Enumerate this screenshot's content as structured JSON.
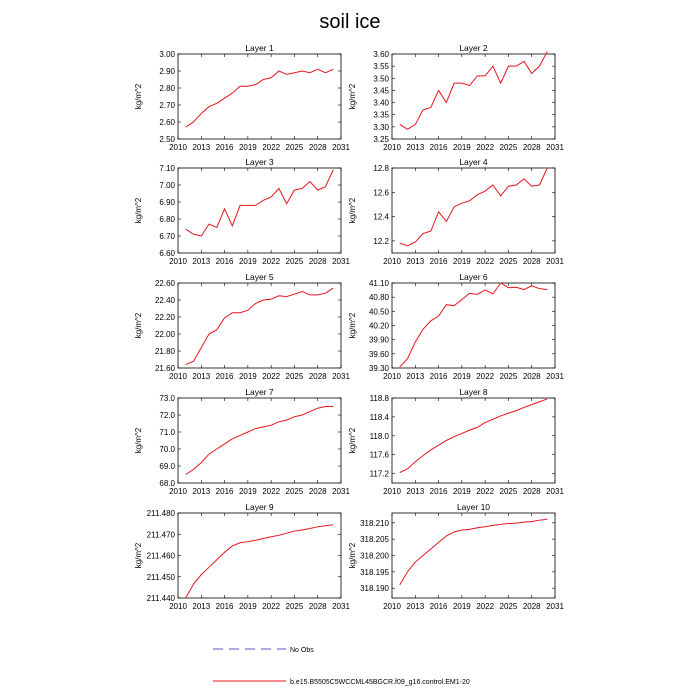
{
  "title": "soil ice",
  "legend": {
    "obs_label": "No Obs",
    "obs_color": "#5555cc",
    "model_label": "b.e15.B5505C5WCCML45BGCR.f09_g16.control.EM1-20",
    "model_color": "#e8141e"
  },
  "chart_data": [
    {
      "type": "line",
      "title": "Layer 1",
      "ylabel": "kg/m^2",
      "xlim": [
        2010,
        2031
      ],
      "xticks": [
        "2010",
        "2013",
        "2016",
        "2019",
        "2022",
        "2025",
        "2028",
        "2031"
      ],
      "ylim": [
        2.5,
        3.0
      ],
      "yticks": [
        "2.50",
        "2.60",
        "2.70",
        "2.80",
        "2.90",
        "3.00"
      ],
      "x": [
        2011,
        2012,
        2013,
        2014,
        2015,
        2016,
        2017,
        2018,
        2019,
        2020,
        2021,
        2022,
        2023,
        2024,
        2025,
        2026,
        2027,
        2028,
        2029,
        2030
      ],
      "series": [
        {
          "values": [
            2.57,
            2.6,
            2.65,
            2.69,
            2.71,
            2.74,
            2.77,
            2.81,
            2.81,
            2.82,
            2.85,
            2.86,
            2.9,
            2.88,
            2.89,
            2.9,
            2.89,
            2.91,
            2.89,
            2.91
          ]
        }
      ]
    },
    {
      "type": "line",
      "title": "Layer 2",
      "ylabel": "kg/m^2",
      "xlim": [
        2010,
        2031
      ],
      "xticks": [
        "2010",
        "2013",
        "2016",
        "2019",
        "2022",
        "2025",
        "2028",
        "2031"
      ],
      "ylim": [
        3.25,
        3.6
      ],
      "yticks": [
        "3.25",
        "3.30",
        "3.35",
        "3.40",
        "3.45",
        "3.50",
        "3.55",
        "3.60"
      ],
      "x": [
        2011,
        2012,
        2013,
        2014,
        2015,
        2016,
        2017,
        2018,
        2019,
        2020,
        2021,
        2022,
        2023,
        2024,
        2025,
        2026,
        2027,
        2028,
        2029,
        2030
      ],
      "series": [
        {
          "values": [
            3.31,
            3.29,
            3.31,
            3.37,
            3.38,
            3.45,
            3.4,
            3.48,
            3.48,
            3.47,
            3.51,
            3.51,
            3.55,
            3.48,
            3.55,
            3.55,
            3.57,
            3.52,
            3.55,
            3.61
          ]
        }
      ]
    },
    {
      "type": "line",
      "title": "Layer 3",
      "ylabel": "kg/m^2",
      "xlim": [
        2010,
        2031
      ],
      "xticks": [
        "2010",
        "2013",
        "2016",
        "2019",
        "2022",
        "2025",
        "2028",
        "2031"
      ],
      "ylim": [
        6.6,
        7.1
      ],
      "yticks": [
        "6.60",
        "6.70",
        "6.80",
        "6.90",
        "7.00",
        "7.10"
      ],
      "x": [
        2011,
        2012,
        2013,
        2014,
        2015,
        2016,
        2017,
        2018,
        2019,
        2020,
        2021,
        2022,
        2023,
        2024,
        2025,
        2026,
        2027,
        2028,
        2029,
        2030
      ],
      "series": [
        {
          "values": [
            6.74,
            6.71,
            6.7,
            6.77,
            6.75,
            6.86,
            6.76,
            6.88,
            6.88,
            6.88,
            6.91,
            6.93,
            6.98,
            6.89,
            6.97,
            6.98,
            7.02,
            6.97,
            6.99,
            7.09
          ]
        }
      ]
    },
    {
      "type": "line",
      "title": "Layer 4",
      "ylabel": "kg/m^2",
      "xlim": [
        2010,
        2031
      ],
      "xticks": [
        "2010",
        "2013",
        "2016",
        "2019",
        "2022",
        "2025",
        "2028",
        "2031"
      ],
      "ylim": [
        12.1,
        12.8
      ],
      "yticks": [
        "12.2",
        "12.4",
        "12.6",
        "12.8"
      ],
      "x": [
        2011,
        2012,
        2013,
        2014,
        2015,
        2016,
        2017,
        2018,
        2019,
        2020,
        2021,
        2022,
        2023,
        2024,
        2025,
        2026,
        2027,
        2028,
        2029,
        2030
      ],
      "series": [
        {
          "values": [
            12.18,
            12.16,
            12.19,
            12.26,
            12.28,
            12.44,
            12.36,
            12.48,
            12.51,
            12.53,
            12.58,
            12.61,
            12.66,
            12.57,
            12.65,
            12.66,
            12.71,
            12.65,
            12.66,
            12.8
          ]
        }
      ]
    },
    {
      "type": "line",
      "title": "Layer 5",
      "ylabel": "kg/m^2",
      "xlim": [
        2010,
        2031
      ],
      "xticks": [
        "2010",
        "2013",
        "2016",
        "2019",
        "2022",
        "2025",
        "2028",
        "2031"
      ],
      "ylim": [
        21.6,
        22.6
      ],
      "yticks": [
        "21.60",
        "21.80",
        "22.00",
        "22.20",
        "22.40",
        "22.60"
      ],
      "x": [
        2011,
        2012,
        2013,
        2014,
        2015,
        2016,
        2017,
        2018,
        2019,
        2020,
        2021,
        2022,
        2023,
        2024,
        2025,
        2026,
        2027,
        2028,
        2029,
        2030
      ],
      "series": [
        {
          "values": [
            21.64,
            21.68,
            21.84,
            22.0,
            22.05,
            22.19,
            22.25,
            22.25,
            22.28,
            22.36,
            22.4,
            22.41,
            22.45,
            22.44,
            22.47,
            22.5,
            22.46,
            22.46,
            22.48,
            22.54
          ]
        }
      ]
    },
    {
      "type": "line",
      "title": "Layer 6",
      "ylabel": "kg/m^2",
      "xlim": [
        2010,
        2031
      ],
      "xticks": [
        "2010",
        "2013",
        "2016",
        "2019",
        "2022",
        "2025",
        "2028",
        "2031"
      ],
      "ylim": [
        39.3,
        41.1
      ],
      "yticks": [
        "39.30",
        "39.60",
        "39.90",
        "40.20",
        "40.50",
        "40.80",
        "41.10"
      ],
      "x": [
        2011,
        2012,
        2013,
        2014,
        2015,
        2016,
        2017,
        2018,
        2019,
        2020,
        2021,
        2022,
        2023,
        2024,
        2025,
        2026,
        2027,
        2028,
        2029,
        2030
      ],
      "series": [
        {
          "values": [
            39.32,
            39.5,
            39.85,
            40.12,
            40.3,
            40.4,
            40.64,
            40.62,
            40.75,
            40.88,
            40.86,
            40.95,
            40.87,
            41.1,
            41.0,
            41.01,
            40.96,
            41.04,
            40.98,
            40.96
          ]
        }
      ]
    },
    {
      "type": "line",
      "title": "Layer 7",
      "ylabel": "kg/m^2",
      "xlim": [
        2010,
        2031
      ],
      "xticks": [
        "2010",
        "2013",
        "2016",
        "2019",
        "2022",
        "2025",
        "2028",
        "2031"
      ],
      "ylim": [
        68.0,
        73.0
      ],
      "yticks": [
        "68.0",
        "69.0",
        "70.0",
        "71.0",
        "72.0",
        "73.0"
      ],
      "x": [
        2011,
        2012,
        2013,
        2014,
        2015,
        2016,
        2017,
        2018,
        2019,
        2020,
        2021,
        2022,
        2023,
        2024,
        2025,
        2026,
        2027,
        2028,
        2029,
        2030
      ],
      "series": [
        {
          "values": [
            68.5,
            68.8,
            69.2,
            69.7,
            70.0,
            70.3,
            70.6,
            70.8,
            71.0,
            71.2,
            71.3,
            71.4,
            71.6,
            71.7,
            71.9,
            72.0,
            72.2,
            72.4,
            72.5,
            72.5
          ]
        }
      ]
    },
    {
      "type": "line",
      "title": "Layer 8",
      "ylabel": "kg/m^2",
      "xlim": [
        2010,
        2031
      ],
      "xticks": [
        "2010",
        "2013",
        "2016",
        "2019",
        "2022",
        "2025",
        "2028",
        "2031"
      ],
      "ylim": [
        117.0,
        118.8
      ],
      "yticks": [
        "117.2",
        "117.6",
        "118.0",
        "118.4",
        "118.8"
      ],
      "x": [
        2011,
        2012,
        2013,
        2014,
        2015,
        2016,
        2017,
        2018,
        2019,
        2020,
        2021,
        2022,
        2023,
        2024,
        2025,
        2026,
        2027,
        2028,
        2029,
        2030
      ],
      "series": [
        {
          "values": [
            117.22,
            117.3,
            117.45,
            117.58,
            117.7,
            117.8,
            117.9,
            117.98,
            118.05,
            118.12,
            118.18,
            118.28,
            118.35,
            118.42,
            118.48,
            118.53,
            118.6,
            118.66,
            118.72,
            118.78
          ]
        }
      ]
    },
    {
      "type": "line",
      "title": "Layer 9",
      "ylabel": "kg/m^2",
      "xlim": [
        2010,
        2031
      ],
      "xticks": [
        "2010",
        "2013",
        "2016",
        "2019",
        "2022",
        "2025",
        "2028",
        "2031"
      ],
      "ylim": [
        211.44,
        211.48
      ],
      "yticks": [
        "211.440",
        "211.450",
        "211.460",
        "211.470",
        "211.480"
      ],
      "x": [
        2011,
        2012,
        2013,
        2014,
        2015,
        2016,
        2017,
        2018,
        2019,
        2020,
        2021,
        2022,
        2023,
        2024,
        2025,
        2026,
        2027,
        2028,
        2029,
        2030
      ],
      "series": [
        {
          "values": [
            211.44,
            211.4465,
            211.451,
            211.4545,
            211.458,
            211.4615,
            211.4645,
            211.466,
            211.4665,
            211.4672,
            211.468,
            211.4688,
            211.4695,
            211.4705,
            211.4715,
            211.472,
            211.4727,
            211.4735,
            211.474,
            211.4745
          ]
        }
      ]
    },
    {
      "type": "line",
      "title": "Layer 10",
      "ylabel": "kg/m^2",
      "xlim": [
        2010,
        2031
      ],
      "xticks": [
        "2010",
        "2013",
        "2016",
        "2019",
        "2022",
        "2025",
        "2028",
        "2031"
      ],
      "ylim": [
        318.187,
        318.213
      ],
      "yticks": [
        "318.190",
        "318.195",
        "318.200",
        "318.205",
        "318.210"
      ],
      "x": [
        2011,
        2012,
        2013,
        2014,
        2015,
        2016,
        2017,
        2018,
        2019,
        2020,
        2021,
        2022,
        2023,
        2024,
        2025,
        2026,
        2027,
        2028,
        2029,
        2030
      ],
      "series": [
        {
          "values": [
            318.191,
            318.195,
            318.198,
            318.2,
            318.202,
            318.204,
            318.206,
            318.2072,
            318.2078,
            318.208,
            318.2085,
            318.2088,
            318.2092,
            318.2095,
            318.2098,
            318.2099,
            318.2102,
            318.2104,
            318.2108,
            318.2111
          ]
        }
      ]
    }
  ]
}
